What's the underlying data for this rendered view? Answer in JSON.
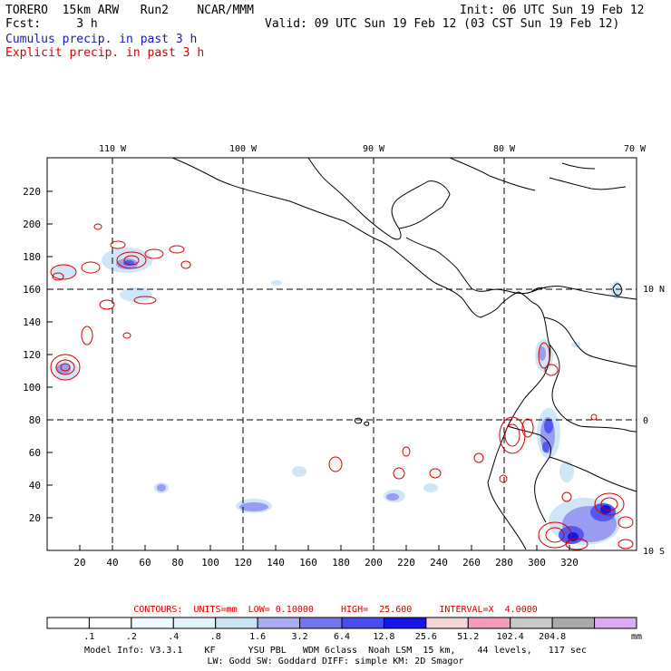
{
  "header": {
    "model": "TORERO  15km ARW   Run2    NCAR/MMM",
    "init": "Init: 06 UTC Sun 19 Feb 12",
    "fcst": "Fcst:     3 h",
    "valid": "Valid: 09 UTC Sun 19 Feb 12 (03 CST Sun 19 Feb 12)",
    "legend_cumulus": "Cumulus precip. in past 3 h",
    "legend_explicit": "Explicit precip. in past 3 h"
  },
  "colors": {
    "cumulus": "#1a1aa8",
    "explicit": "#d40000",
    "grid": "#000000"
  },
  "map": {
    "lon_labels": [
      "110 W",
      "100 W",
      "90 W",
      "80 W",
      "70 W"
    ],
    "lat_labels": [
      "10 N",
      "0",
      "10 S"
    ],
    "x_ticks": [
      "20",
      "40",
      "60",
      "80",
      "100",
      "120",
      "140",
      "160",
      "180",
      "200",
      "220",
      "240",
      "260",
      "280",
      "300",
      "320"
    ],
    "y_ticks": [
      "20",
      "40",
      "60",
      "80",
      "100",
      "120",
      "140",
      "160",
      "180",
      "200",
      "220"
    ],
    "grid_lines": "dashed",
    "content": "coastlines, country borders, shaded cumulus precipitation, red explicit precipitation contours"
  },
  "colorbar": {
    "values": [
      ".1",
      ".2",
      ".4",
      ".8",
      "1.6",
      "3.2",
      "6.4",
      "12.8",
      "25.6",
      "51.2",
      "102.4",
      "204.8"
    ],
    "unit": "mm",
    "fills": [
      "#ffffff",
      "#ffffff",
      "#eef8ff",
      "#e1f2fb",
      "#c9e3f5",
      "#a8aaf4",
      "#7476f0",
      "#4b4cee",
      "#1515e8",
      "#f5d4d4",
      "#f59ab8",
      "#c8c8c8",
      "#a9a9a9",
      "#dcaaf5"
    ]
  },
  "contours": {
    "text": "CONTOURS:  UNITS=mm  LOW= 0.10000     HIGH=  25.600     INTERVAL=X  4.0000"
  },
  "footer": {
    "line1": "Model Info: V3.3.1    KF      YSU PBL   WDM 6class  Noah LSM  15 km,    44 levels,   117 sec",
    "line2": "LW: Godd SW: Goddard DIFF: simple KM: 2D Smagor"
  }
}
